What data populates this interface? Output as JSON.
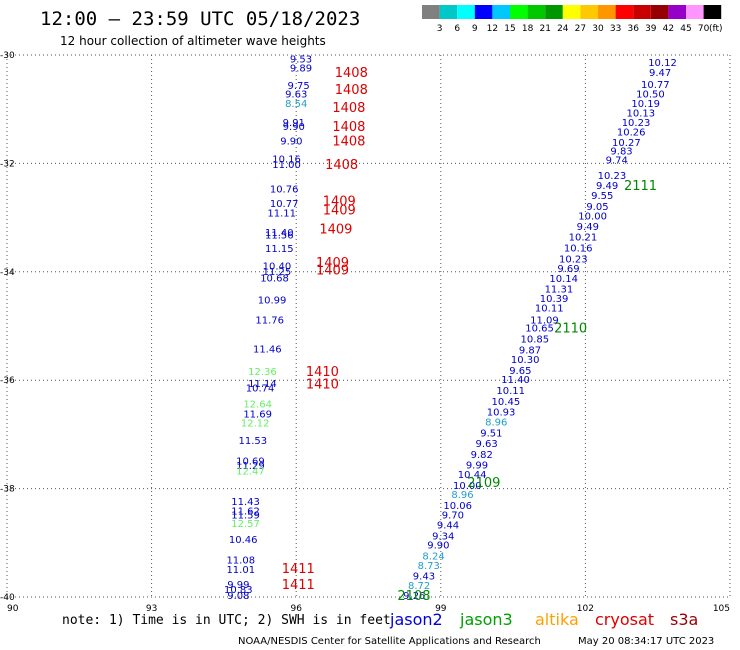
{
  "header": {
    "title": "12:00 – 23:59 UTC 05/18/2023",
    "subtitle": "12 hour collection of altimeter wave heights"
  },
  "colorbar": {
    "unit": "(ft)",
    "labels": [
      "3",
      "6",
      "9",
      "12",
      "15",
      "18",
      "21",
      "24",
      "27",
      "30",
      "33",
      "36",
      "39",
      "42",
      "45",
      "70"
    ],
    "colors": [
      "#808080",
      "#00c8c8",
      "#00ffff",
      "#0000ff",
      "#00c8ff",
      "#00ff00",
      "#00c800",
      "#009600",
      "#ffff00",
      "#ffc800",
      "#ff9600",
      "#ff0000",
      "#c80000",
      "#960000",
      "#9600c8",
      "#ff96ff",
      "#000000"
    ]
  },
  "footer": {
    "note": "note: 1) Time is in UTC; 2) SWH is in feet",
    "credit": "NOAA/NESDIS Center for Satellite Applications and Research",
    "timestamp": "May 20 08:34:17 UTC 2023",
    "satellites": [
      {
        "name": "jason2",
        "color": "#0000dd"
      },
      {
        "name": "jason3",
        "color": "#00a000"
      },
      {
        "name": "altika",
        "color": "#ffa000"
      },
      {
        "name": "cryosat",
        "color": "#dd0000"
      },
      {
        "name": "s3a",
        "color": "#990000"
      }
    ]
  },
  "chart_data": {
    "type": "scatter",
    "title": "12:00 – 23:59 UTC 05/18/2023",
    "subtitle": "12 hour collection of altimeter wave heights",
    "xlabel": "",
    "ylabel": "",
    "xlim": [
      90,
      105
    ],
    "ylim": [
      -40,
      -30
    ],
    "xticks": [
      90,
      93,
      96,
      99,
      102,
      105
    ],
    "yticks": [
      -30,
      -32,
      -34,
      -36,
      -38,
      -40
    ],
    "grid": true,
    "colors": {
      "blue": "#0000cc",
      "lightgreen": "#66ee66",
      "teal": "#1fa0c8",
      "red": "#dd0000",
      "green": "#008800"
    },
    "pass_labels": [
      {
        "text": "1408",
        "x": 96.8,
        "y": -30.33,
        "color": "red"
      },
      {
        "text": "1408",
        "x": 96.8,
        "y": -30.65,
        "color": "red"
      },
      {
        "text": "1408",
        "x": 96.75,
        "y": -30.98,
        "color": "red"
      },
      {
        "text": "1408",
        "x": 96.75,
        "y": -31.33,
        "color": "red"
      },
      {
        "text": "1408",
        "x": 96.75,
        "y": -31.6,
        "color": "red"
      },
      {
        "text": "1408",
        "x": 96.6,
        "y": -32.03,
        "color": "red"
      },
      {
        "text": "1409",
        "x": 96.55,
        "y": -32.7,
        "color": "red"
      },
      {
        "text": "1409",
        "x": 96.55,
        "y": -32.87,
        "color": "red"
      },
      {
        "text": "1409",
        "x": 96.48,
        "y": -33.22,
        "color": "red"
      },
      {
        "text": "1409",
        "x": 96.41,
        "y": -33.84,
        "color": "red"
      },
      {
        "text": "1409",
        "x": 96.41,
        "y": -33.98,
        "color": "red"
      },
      {
        "text": "1410",
        "x": 96.2,
        "y": -35.85,
        "color": "red"
      },
      {
        "text": "1410",
        "x": 96.2,
        "y": -36.08,
        "color": "red"
      },
      {
        "text": "1411",
        "x": 95.7,
        "y": -39.48,
        "color": "red"
      },
      {
        "text": "1411",
        "x": 95.7,
        "y": -39.78,
        "color": "red"
      },
      {
        "text": "2111",
        "x": 102.8,
        "y": -32.42,
        "color": "green"
      },
      {
        "text": "2110",
        "x": 101.35,
        "y": -35.05,
        "color": "green"
      },
      {
        "text": "2109",
        "x": 99.55,
        "y": -37.9,
        "color": "green"
      },
      {
        "text": "2108",
        "x": 98.1,
        "y": -39.98,
        "color": "green"
      }
    ],
    "series": [
      {
        "name": "",
        "points": [
          {
            "v": "9.53",
            "x": 96.1,
            "y": -30.08,
            "c": "blue"
          },
          {
            "v": "9.89",
            "x": 96.1,
            "y": -30.25,
            "c": "blue"
          },
          {
            "v": "9.75",
            "x": 96.05,
            "y": -30.57,
            "c": "blue"
          },
          {
            "v": "9.63",
            "x": 96.0,
            "y": -30.73,
            "c": "blue"
          },
          {
            "v": "8.54",
            "x": 96.0,
            "y": -30.9,
            "c": "teal"
          },
          {
            "v": "9.91",
            "x": 95.95,
            "y": -31.25,
            "c": "blue"
          },
          {
            "v": "9.90",
            "x": 95.95,
            "y": -31.33,
            "c": "blue"
          },
          {
            "v": "9.90",
            "x": 95.9,
            "y": -31.6,
            "c": "blue"
          },
          {
            "v": "10.16",
            "x": 95.8,
            "y": -31.93,
            "c": "blue"
          },
          {
            "v": "11.00",
            "x": 95.8,
            "y": -32.03,
            "c": "blue"
          },
          {
            "v": "10.76",
            "x": 95.75,
            "y": -32.48,
            "c": "blue"
          },
          {
            "v": "10.77",
            "x": 95.75,
            "y": -32.75,
            "c": "blue"
          },
          {
            "v": "11.11",
            "x": 95.7,
            "y": -32.92,
            "c": "blue"
          },
          {
            "v": "11.40",
            "x": 95.65,
            "y": -33.28,
            "c": "blue"
          },
          {
            "v": "11.56",
            "x": 95.65,
            "y": -33.33,
            "c": "blue"
          },
          {
            "v": "11.15",
            "x": 95.65,
            "y": -33.58,
            "c": "blue"
          },
          {
            "v": "10.40",
            "x": 95.6,
            "y": -33.9,
            "c": "blue"
          },
          {
            "v": "11.25",
            "x": 95.6,
            "y": -34.0,
            "c": "blue"
          },
          {
            "v": "10.68",
            "x": 95.55,
            "y": -34.12,
            "c": "blue"
          },
          {
            "v": "10.99",
            "x": 95.5,
            "y": -34.53,
            "c": "blue"
          },
          {
            "v": "11.76",
            "x": 95.45,
            "y": -34.9,
            "c": "blue"
          },
          {
            "v": "11.46",
            "x": 95.4,
            "y": -35.43,
            "c": "blue"
          },
          {
            "v": "12.36",
            "x": 95.3,
            "y": -35.85,
            "c": "lightgreen"
          },
          {
            "v": "11.14",
            "x": 95.3,
            "y": -36.07,
            "c": "blue"
          },
          {
            "v": "10.74",
            "x": 95.25,
            "y": -36.15,
            "c": "blue"
          },
          {
            "v": "12.64",
            "x": 95.2,
            "y": -36.45,
            "c": "lightgreen"
          },
          {
            "v": "11.69",
            "x": 95.2,
            "y": -36.63,
            "c": "blue"
          },
          {
            "v": "12.12",
            "x": 95.15,
            "y": -36.8,
            "c": "lightgreen"
          },
          {
            "v": "11.53",
            "x": 95.1,
            "y": -37.12,
            "c": "blue"
          },
          {
            "v": "10.69",
            "x": 95.05,
            "y": -37.5,
            "c": "blue"
          },
          {
            "v": "11.29",
            "x": 95.05,
            "y": -37.58,
            "c": "blue"
          },
          {
            "v": "12.47",
            "x": 95.05,
            "y": -37.68,
            "c": "lightgreen"
          },
          {
            "v": "11.43",
            "x": 94.95,
            "y": -38.25,
            "c": "blue"
          },
          {
            "v": "11.62",
            "x": 94.95,
            "y": -38.42,
            "c": "blue"
          },
          {
            "v": "11.59",
            "x": 94.95,
            "y": -38.5,
            "c": "blue"
          },
          {
            "v": "12.57",
            "x": 94.95,
            "y": -38.65,
            "c": "lightgreen"
          },
          {
            "v": "10.46",
            "x": 94.9,
            "y": -38.95,
            "c": "blue"
          },
          {
            "v": "11.08",
            "x": 94.85,
            "y": -39.33,
            "c": "blue"
          },
          {
            "v": "11.01",
            "x": 94.85,
            "y": -39.5,
            "c": "blue"
          },
          {
            "v": "9.99",
            "x": 94.8,
            "y": -39.78,
            "c": "blue"
          },
          {
            "v": "10.83",
            "x": 94.8,
            "y": -39.87,
            "c": "blue"
          },
          {
            "v": "9.08",
            "x": 94.8,
            "y": -39.98,
            "c": "blue"
          },
          {
            "v": "10.12",
            "x": 103.6,
            "y": -30.15,
            "c": "blue"
          },
          {
            "v": "9.47",
            "x": 103.55,
            "y": -30.33,
            "c": "blue"
          },
          {
            "v": "10.77",
            "x": 103.45,
            "y": -30.55,
            "c": "blue"
          },
          {
            "v": "10.50",
            "x": 103.35,
            "y": -30.73,
            "c": "blue"
          },
          {
            "v": "10.19",
            "x": 103.25,
            "y": -30.9,
            "c": "blue"
          },
          {
            "v": "10.13",
            "x": 103.15,
            "y": -31.08,
            "c": "blue"
          },
          {
            "v": "10.23",
            "x": 103.05,
            "y": -31.25,
            "c": "blue"
          },
          {
            "v": "10.26",
            "x": 102.95,
            "y": -31.43,
            "c": "blue"
          },
          {
            "v": "10.27",
            "x": 102.85,
            "y": -31.62,
            "c": "blue"
          },
          {
            "v": "9.83",
            "x": 102.75,
            "y": -31.78,
            "c": "blue"
          },
          {
            "v": "9.74",
            "x": 102.65,
            "y": -31.95,
            "c": "blue"
          },
          {
            "v": "10.23",
            "x": 102.55,
            "y": -32.23,
            "c": "blue"
          },
          {
            "v": "9.49",
            "x": 102.45,
            "y": -32.42,
            "c": "blue"
          },
          {
            "v": "9.55",
            "x": 102.35,
            "y": -32.6,
            "c": "blue"
          },
          {
            "v": "9.05",
            "x": 102.25,
            "y": -32.8,
            "c": "blue"
          },
          {
            "v": "10.00",
            "x": 102.15,
            "y": -32.98,
            "c": "blue"
          },
          {
            "v": "9.49",
            "x": 102.05,
            "y": -33.17,
            "c": "blue"
          },
          {
            "v": "10.21",
            "x": 101.95,
            "y": -33.37,
            "c": "blue"
          },
          {
            "v": "10.16",
            "x": 101.85,
            "y": -33.57,
            "c": "blue"
          },
          {
            "v": "10.23",
            "x": 101.75,
            "y": -33.77,
            "c": "blue"
          },
          {
            "v": "9.69",
            "x": 101.65,
            "y": -33.95,
            "c": "blue"
          },
          {
            "v": "10.14",
            "x": 101.55,
            "y": -34.13,
            "c": "blue"
          },
          {
            "v": "11.31",
            "x": 101.45,
            "y": -34.33,
            "c": "blue"
          },
          {
            "v": "10.39",
            "x": 101.35,
            "y": -34.5,
            "c": "blue"
          },
          {
            "v": "10.11",
            "x": 101.25,
            "y": -34.68,
            "c": "blue"
          },
          {
            "v": "11.09",
            "x": 101.15,
            "y": -34.9,
            "c": "blue"
          },
          {
            "v": "10.65",
            "x": 101.05,
            "y": -35.05,
            "c": "blue"
          },
          {
            "v": "10.85",
            "x": 100.95,
            "y": -35.25,
            "c": "blue"
          },
          {
            "v": "9.87",
            "x": 100.85,
            "y": -35.45,
            "c": "blue"
          },
          {
            "v": "10.30",
            "x": 100.75,
            "y": -35.63,
            "c": "blue"
          },
          {
            "v": "9.65",
            "x": 100.65,
            "y": -35.83,
            "c": "blue"
          },
          {
            "v": "11.40",
            "x": 100.55,
            "y": -36.0,
            "c": "blue"
          },
          {
            "v": "10.11",
            "x": 100.45,
            "y": -36.2,
            "c": "blue"
          },
          {
            "v": "10.45",
            "x": 100.35,
            "y": -36.4,
            "c": "blue"
          },
          {
            "v": "10.93",
            "x": 100.25,
            "y": -36.6,
            "c": "blue"
          },
          {
            "v": "8.96",
            "x": 100.15,
            "y": -36.78,
            "c": "teal"
          },
          {
            "v": "9.51",
            "x": 100.05,
            "y": -36.98,
            "c": "blue"
          },
          {
            "v": "9.63",
            "x": 99.95,
            "y": -37.18,
            "c": "blue"
          },
          {
            "v": "9.82",
            "x": 99.85,
            "y": -37.38,
            "c": "blue"
          },
          {
            "v": "9.99",
            "x": 99.75,
            "y": -37.57,
            "c": "blue"
          },
          {
            "v": "10.44",
            "x": 99.65,
            "y": -37.75,
            "c": "blue"
          },
          {
            "v": "10.00",
            "x": 99.55,
            "y": -37.95,
            "c": "blue"
          },
          {
            "v": "8.96",
            "x": 99.45,
            "y": -38.12,
            "c": "teal"
          },
          {
            "v": "10.06",
            "x": 99.35,
            "y": -38.32,
            "c": "blue"
          },
          {
            "v": "9.70",
            "x": 99.25,
            "y": -38.5,
            "c": "blue"
          },
          {
            "v": "9.44",
            "x": 99.15,
            "y": -38.68,
            "c": "blue"
          },
          {
            "v": "9.34",
            "x": 99.05,
            "y": -38.88,
            "c": "blue"
          },
          {
            "v": "9.90",
            "x": 98.95,
            "y": -39.05,
            "c": "blue"
          },
          {
            "v": "8.24",
            "x": 98.85,
            "y": -39.25,
            "c": "teal"
          },
          {
            "v": "8.73",
            "x": 98.75,
            "y": -39.43,
            "c": "teal"
          },
          {
            "v": "9.43",
            "x": 98.65,
            "y": -39.62,
            "c": "blue"
          },
          {
            "v": "8.72",
            "x": 98.55,
            "y": -39.8,
            "c": "teal"
          },
          {
            "v": "9.26",
            "x": 98.45,
            "y": -39.98,
            "c": "blue"
          }
        ]
      }
    ]
  }
}
